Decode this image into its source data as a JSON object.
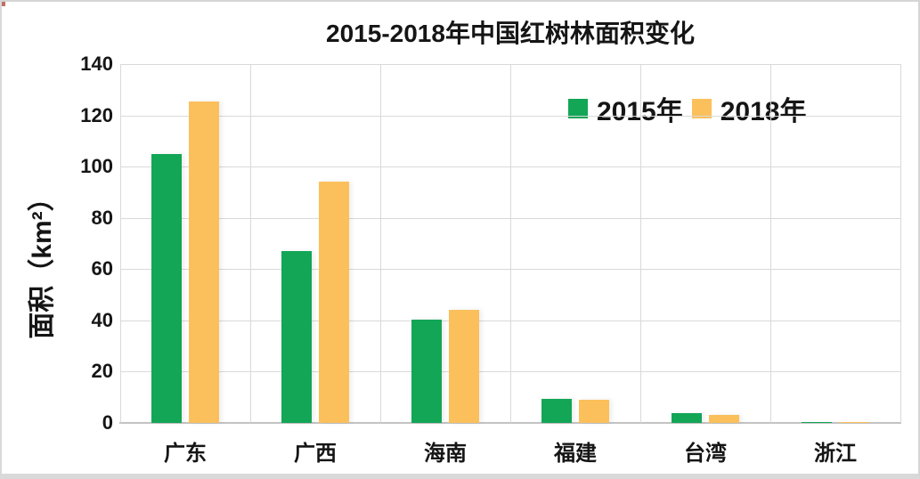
{
  "chart_data": {
    "type": "bar",
    "title": "2015-2018年中国红树林面积变化",
    "ylabel": "面积（km²）",
    "xlabel": "",
    "categories": [
      "广东",
      "广西",
      "海南",
      "福建",
      "台湾",
      "浙江"
    ],
    "series": [
      {
        "name": "2015年",
        "color": "#12A656",
        "values": [
          105,
          67,
          40.3,
          9.5,
          3.8,
          0.2
        ]
      },
      {
        "name": "2018年",
        "color": "#FBC05C",
        "values": [
          125.5,
          94.3,
          44,
          9,
          3.2,
          0.5
        ]
      }
    ],
    "ylim": [
      0,
      140
    ],
    "yticks": [
      0,
      20,
      40,
      60,
      80,
      100,
      120,
      140
    ],
    "grid": true,
    "legend_position": "top-right-inside",
    "colors": {
      "grid": "#d9d9d9",
      "axis": "#c3c3c3",
      "text": "#151515",
      "window_border": "#d5d5d5"
    }
  }
}
